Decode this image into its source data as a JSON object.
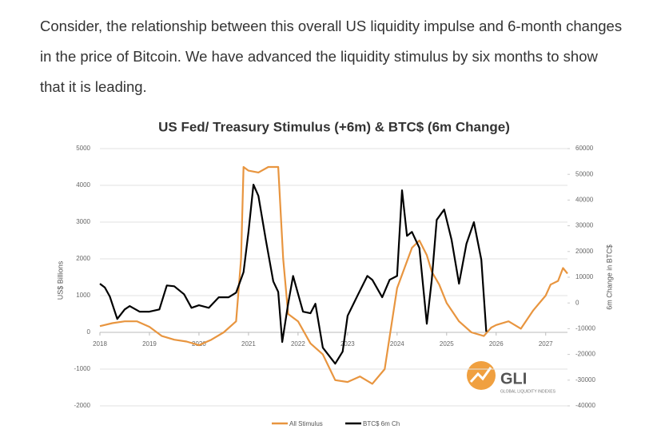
{
  "paragraph": "Consider, the relationship between this overall US liquidity impulse and 6-month changes in the price of Bitcoin. We have advanced the liquidity stimulus by six months to show that it is leading.",
  "chart_data": {
    "type": "line",
    "title": "US Fed/ Treasury Stimulus (+6m) & BTC$ (6m Change)",
    "y_label": "US$ Billions",
    "y2_label": "6m Change in BTC$",
    "logo_text": "GLI",
    "logo_subtext": "GLOBAL LIQUIDITY INDEXES",
    "xlim": [
      2018,
      2027.44
    ],
    "xticks": [
      2018,
      2019,
      2020,
      2021,
      2022,
      2023,
      2024,
      2025,
      2026,
      2027
    ],
    "ylim": [
      -2000,
      5000
    ],
    "yticks": [
      -2000,
      -1000,
      0,
      1000,
      2000,
      3000,
      4000,
      5000
    ],
    "y2lim": [
      -40000,
      60000
    ],
    "y2ticks": [
      -40000,
      -30000,
      -20000,
      -10000,
      0,
      10000,
      20000,
      30000,
      40000,
      50000,
      60000
    ],
    "grid": true,
    "legend": "bottom",
    "series": [
      {
        "name": "All Stimulus",
        "color": "#e8953f",
        "axis": "y",
        "x": [
          2018.0,
          2018.25,
          2018.5,
          2018.75,
          2019.0,
          2019.25,
          2019.5,
          2019.75,
          2020.0,
          2020.25,
          2020.5,
          2020.75,
          2020.85,
          2020.9,
          2021.0,
          2021.2,
          2021.4,
          2021.6,
          2021.7,
          2021.8,
          2022.0,
          2022.25,
          2022.5,
          2022.75,
          2023.0,
          2023.25,
          2023.5,
          2023.75,
          2024.0,
          2024.3,
          2024.45,
          2024.6,
          2024.7,
          2024.85,
          2025.0,
          2025.25,
          2025.5,
          2025.75,
          2025.9,
          2026.0,
          2026.25,
          2026.5,
          2026.75,
          2027.0,
          2027.1,
          2027.25,
          2027.35,
          2027.44
        ],
        "values": [
          170,
          250,
          300,
          300,
          150,
          -100,
          -200,
          -250,
          -350,
          -200,
          0,
          300,
          2000,
          4500,
          4400,
          4350,
          4500,
          4500,
          2000,
          500,
          300,
          -300,
          -600,
          -1300,
          -1350,
          -1200,
          -1400,
          -1000,
          1200,
          2300,
          2500,
          2100,
          1650,
          1300,
          800,
          300,
          0,
          -100,
          130,
          200,
          300,
          100,
          600,
          1000,
          1300,
          1400,
          1750,
          1600
        ]
      },
      {
        "name": "BTC$ 6m Ch",
        "color": "#000000",
        "axis": "y2",
        "x": [
          2018.0,
          2018.1,
          2018.2,
          2018.35,
          2018.5,
          2018.6,
          2018.8,
          2019.0,
          2019.2,
          2019.35,
          2019.5,
          2019.7,
          2019.85,
          2020.0,
          2020.2,
          2020.4,
          2020.6,
          2020.75,
          2020.9,
          2021.0,
          2021.1,
          2021.2,
          2021.35,
          2021.5,
          2021.6,
          2021.68,
          2021.8,
          2021.9,
          2022.1,
          2022.25,
          2022.35,
          2022.5,
          2022.75,
          2022.9,
          2023.0,
          2023.2,
          2023.4,
          2023.5,
          2023.7,
          2023.85,
          2024.0,
          2024.1,
          2024.2,
          2024.3,
          2024.45,
          2024.6,
          2024.7,
          2024.8,
          2024.95,
          2025.1,
          2025.25,
          2025.4,
          2025.55,
          2025.7,
          2025.8
        ],
        "values": [
          7500,
          6000,
          2500,
          -6200,
          -2500,
          -1200,
          -3400,
          -3400,
          -2500,
          6800,
          6500,
          3400,
          -1900,
          -900,
          -1900,
          2200,
          2200,
          4000,
          12000,
          27600,
          46000,
          41600,
          24500,
          8400,
          4300,
          -15200,
          -300,
          10500,
          -3400,
          -4000,
          -300,
          -17400,
          -23600,
          -18900,
          -5000,
          2800,
          10500,
          9000,
          2200,
          9000,
          10500,
          43800,
          26100,
          27600,
          21400,
          -8100,
          9000,
          32300,
          36300,
          24500,
          7500,
          23000,
          31400,
          16800,
          -11200
        ]
      }
    ]
  }
}
